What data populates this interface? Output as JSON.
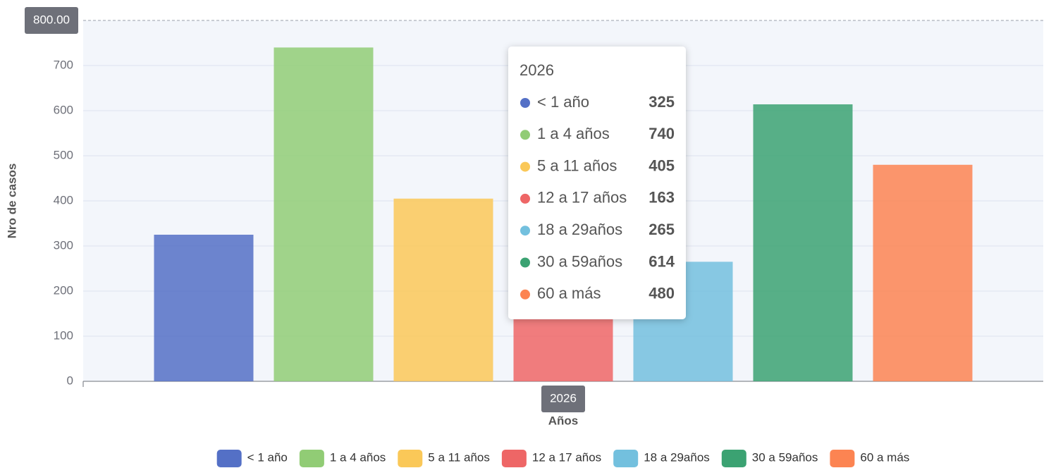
{
  "chart_data": {
    "type": "bar",
    "categories": [
      "2026"
    ],
    "series": [
      {
        "name": "< 1 año",
        "color": "#5470c6",
        "values": [
          325
        ]
      },
      {
        "name": "1 a 4 años",
        "color": "#91cc75",
        "values": [
          740
        ]
      },
      {
        "name": "5 a 11 años",
        "color": "#fac858",
        "values": [
          405
        ]
      },
      {
        "name": "12 a 17 años",
        "color": "#ee6666",
        "values": [
          163
        ]
      },
      {
        "name": "18 a 29años",
        "color": "#73c0de",
        "values": [
          265
        ]
      },
      {
        "name": "30 a 59años",
        "color": "#3ba272",
        "values": [
          614
        ]
      },
      {
        "name": "60 a más",
        "color": "#fc8452",
        "values": [
          480
        ]
      }
    ],
    "y_label": "Nro de casos",
    "x_label": "Años",
    "ylim": [
      0,
      800
    ],
    "yticks": [
      0,
      100,
      200,
      300,
      400,
      500,
      600,
      700
    ],
    "grid": true,
    "legend": "bottom",
    "axis_pointer": {
      "value": 800,
      "label": "800.00"
    },
    "tooltip": {
      "title": "2026"
    }
  }
}
